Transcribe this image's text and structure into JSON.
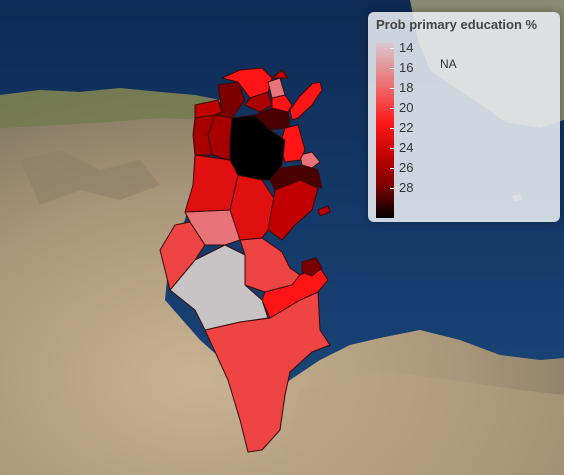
{
  "map": {
    "regions_colors": {
      "na": "#c8c4c6",
      "light": "#e8747a",
      "medium": "#ee4444",
      "bright": "#ff1515",
      "red": "#e01010",
      "dark": "#a80000",
      "darker": "#7a0000",
      "darkest": "#2a0000",
      "black": "#000000"
    }
  },
  "legend": {
    "title": "Prob primary education %",
    "ticks": [
      {
        "label": "14"
      },
      {
        "label": "16"
      },
      {
        "label": "18"
      },
      {
        "label": "20"
      },
      {
        "label": "22"
      },
      {
        "label": "24"
      },
      {
        "label": "26"
      },
      {
        "label": "28"
      }
    ],
    "na_label": "NA"
  }
}
